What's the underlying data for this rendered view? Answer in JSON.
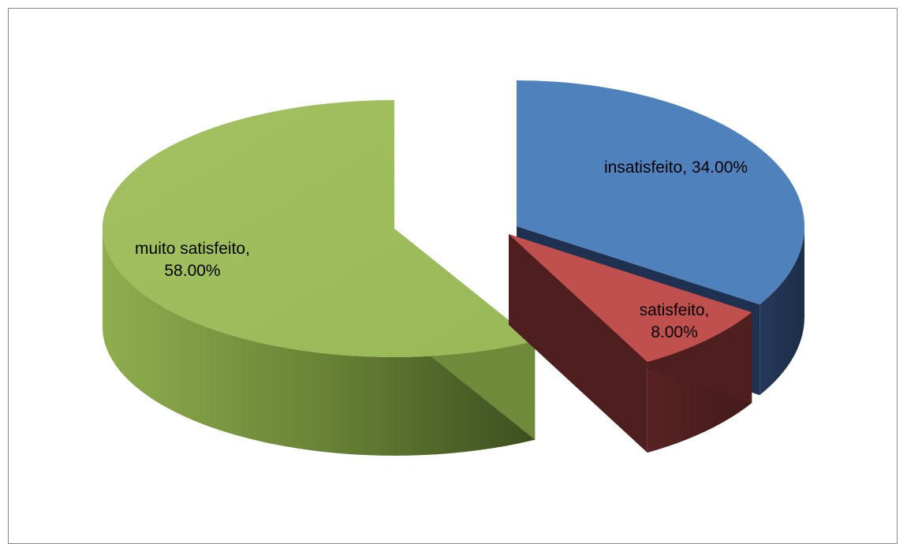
{
  "chart_data": {
    "type": "pie",
    "style": "3d-exploded",
    "slices": [
      {
        "label": "insatisfeito",
        "value": 34.0,
        "value_label": "34.00%",
        "color": "#4f81bd",
        "side_color": "#1f3150"
      },
      {
        "label": "satisfeito",
        "value": 8.0,
        "value_label": "8.00%",
        "color": "#c0504d",
        "side_color": "#4f1f1f"
      },
      {
        "label": "muito satisfeito",
        "value": 58.0,
        "value_label": "58.00%",
        "color": "#9bbb59",
        "side_color": "#6e8a3a"
      }
    ],
    "data_labels": [
      {
        "lines": [
          "insatisfeito, 34.00%"
        ]
      },
      {
        "lines": [
          "satisfeito,",
          "8.00%"
        ]
      },
      {
        "lines": [
          "muito satisfeito,",
          "58.00%"
        ]
      }
    ]
  }
}
